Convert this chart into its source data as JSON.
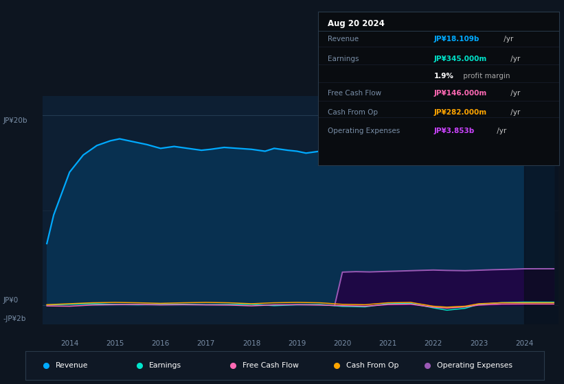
{
  "bg_color": "#0d1520",
  "plot_bg_color": "#0d1f33",
  "text_color": "#ffffff",
  "dim_text_color": "#7a8fa8",
  "revenue_color": "#00aaff",
  "earnings_color": "#00e5cc",
  "fcf_color": "#ff69b4",
  "cashfromop_color": "#ffa500",
  "opex_color": "#9b59b6",
  "revenue_fill_color": "#0a3050",
  "opex_fill_color": "#2a0a50",
  "ylim_low": -2000000000,
  "ylim_high": 22000000000,
  "xlim_low": 2013.4,
  "xlim_high": 2024.75,
  "revenue_data_x": [
    2013.5,
    2013.65,
    2014.0,
    2014.3,
    2014.6,
    2014.9,
    2015.1,
    2015.4,
    2015.7,
    2016.0,
    2016.3,
    2016.6,
    2016.9,
    2017.1,
    2017.4,
    2017.7,
    2018.0,
    2018.3,
    2018.5,
    2018.8,
    2019.0,
    2019.2,
    2019.5,
    2019.8,
    2020.0,
    2020.3,
    2020.6,
    2020.9,
    2021.1,
    2021.4,
    2021.7,
    2022.0,
    2022.3,
    2022.5,
    2022.8,
    2023.0,
    2023.3,
    2023.6,
    2023.9,
    2024.1,
    2024.4,
    2024.65
  ],
  "revenue_data_y": [
    6500000000.0,
    9500000000.0,
    14000000000.0,
    15800000000.0,
    16800000000.0,
    17300000000.0,
    17500000000.0,
    17200000000.0,
    16900000000.0,
    16500000000.0,
    16700000000.0,
    16500000000.0,
    16300000000.0,
    16400000000.0,
    16600000000.0,
    16500000000.0,
    16400000000.0,
    16200000000.0,
    16500000000.0,
    16300000000.0,
    16200000000.0,
    16000000000.0,
    16200000000.0,
    16100000000.0,
    15800000000.0,
    15400000000.0,
    15700000000.0,
    15900000000.0,
    16100000000.0,
    16500000000.0,
    16900000000.0,
    17000000000.0,
    16600000000.0,
    16200000000.0,
    16300000000.0,
    16600000000.0,
    17000000000.0,
    17500000000.0,
    17800000000.0,
    18000000000.0,
    18150000000.0,
    18109000000.0
  ],
  "earnings_data_x": [
    2013.5,
    2014.0,
    2014.5,
    2015.0,
    2015.5,
    2016.0,
    2016.5,
    2017.0,
    2017.5,
    2018.0,
    2018.5,
    2019.0,
    2019.5,
    2020.0,
    2020.5,
    2021.0,
    2021.5,
    2022.0,
    2022.3,
    2022.7,
    2023.0,
    2023.5,
    2024.0,
    2024.65
  ],
  "earnings_data_y": [
    50000000.0,
    120000000.0,
    180000000.0,
    100000000.0,
    70000000.0,
    100000000.0,
    120000000.0,
    80000000.0,
    100000000.0,
    120000000.0,
    -20000000.0,
    70000000.0,
    100000000.0,
    -100000000.0,
    -150000000.0,
    180000000.0,
    220000000.0,
    -250000000.0,
    -500000000.0,
    -300000000.0,
    120000000.0,
    300000000.0,
    350000000.0,
    345000000.0
  ],
  "fcf_data_x": [
    2013.5,
    2014.0,
    2014.5,
    2015.0,
    2015.5,
    2016.0,
    2016.5,
    2017.0,
    2017.5,
    2018.0,
    2018.5,
    2019.0,
    2019.5,
    2020.0,
    2020.5,
    2021.0,
    2021.5,
    2022.0,
    2022.3,
    2022.7,
    2023.0,
    2023.5,
    2024.0,
    2024.65
  ],
  "fcf_data_y": [
    -50000000.0,
    -80000000.0,
    50000000.0,
    80000000.0,
    100000000.0,
    60000000.0,
    80000000.0,
    60000000.0,
    40000000.0,
    -40000000.0,
    60000000.0,
    80000000.0,
    40000000.0,
    -20000000.0,
    -80000000.0,
    90000000.0,
    130000000.0,
    -180000000.0,
    -280000000.0,
    -150000000.0,
    40000000.0,
    140000000.0,
    150000000.0,
    146000000.0
  ],
  "cashfromop_data_x": [
    2013.5,
    2014.0,
    2014.5,
    2015.0,
    2015.5,
    2016.0,
    2016.5,
    2017.0,
    2017.5,
    2018.0,
    2018.5,
    2019.0,
    2019.5,
    2020.0,
    2020.5,
    2021.0,
    2021.5,
    2022.0,
    2022.3,
    2022.7,
    2023.0,
    2023.5,
    2024.0,
    2024.65
  ],
  "cashfromop_data_y": [
    80000000.0,
    180000000.0,
    280000000.0,
    320000000.0,
    280000000.0,
    220000000.0,
    280000000.0,
    320000000.0,
    280000000.0,
    180000000.0,
    280000000.0,
    320000000.0,
    280000000.0,
    120000000.0,
    80000000.0,
    280000000.0,
    320000000.0,
    -80000000.0,
    -180000000.0,
    -80000000.0,
    180000000.0,
    280000000.0,
    280000000.0,
    282000000.0
  ],
  "opex_data_x": [
    2019.83,
    2020.0,
    2020.3,
    2020.6,
    2021.0,
    2021.3,
    2021.7,
    2022.0,
    2022.3,
    2022.7,
    2023.0,
    2023.3,
    2023.7,
    2024.0,
    2024.3,
    2024.65
  ],
  "opex_data_y": [
    0.0,
    3500000000.0,
    3550000000.0,
    3520000000.0,
    3580000000.0,
    3620000000.0,
    3680000000.0,
    3720000000.0,
    3680000000.0,
    3650000000.0,
    3700000000.0,
    3750000000.0,
    3800000000.0,
    3850000000.0,
    3853000000.0,
    3853000000.0
  ],
  "dark_overlay_x": 2024.0,
  "year_ticks": [
    2014,
    2015,
    2016,
    2017,
    2018,
    2019,
    2020,
    2021,
    2022,
    2023,
    2024
  ],
  "tooltip_title": "Aug 20 2024",
  "tooltip_rows": [
    {
      "label": "Revenue",
      "value": "JP¥18.109b",
      "suffix": " /yr",
      "color": "#00aaff"
    },
    {
      "label": "Earnings",
      "value": "JP¥345.000m",
      "suffix": " /yr",
      "color": "#00e5cc"
    },
    {
      "label": "",
      "value": "1.9%",
      "suffix": " profit margin",
      "color": "#ffffff",
      "suffix_color": "#aaaaaa"
    },
    {
      "label": "Free Cash Flow",
      "value": "JP¥146.000m",
      "suffix": " /yr",
      "color": "#ff69b4"
    },
    {
      "label": "Cash From Op",
      "value": "JP¥282.000m",
      "suffix": " /yr",
      "color": "#ffa500"
    },
    {
      "label": "Operating Expenses",
      "value": "JP¥3.853b",
      "suffix": " /yr",
      "color": "#cc44ff"
    }
  ],
  "legend_items": [
    {
      "label": "Revenue",
      "color": "#00aaff"
    },
    {
      "label": "Earnings",
      "color": "#00e5cc"
    },
    {
      "label": "Free Cash Flow",
      "color": "#ff69b4"
    },
    {
      "label": "Cash From Op",
      "color": "#ffa500"
    },
    {
      "label": "Operating Expenses",
      "color": "#9b59b6"
    }
  ]
}
